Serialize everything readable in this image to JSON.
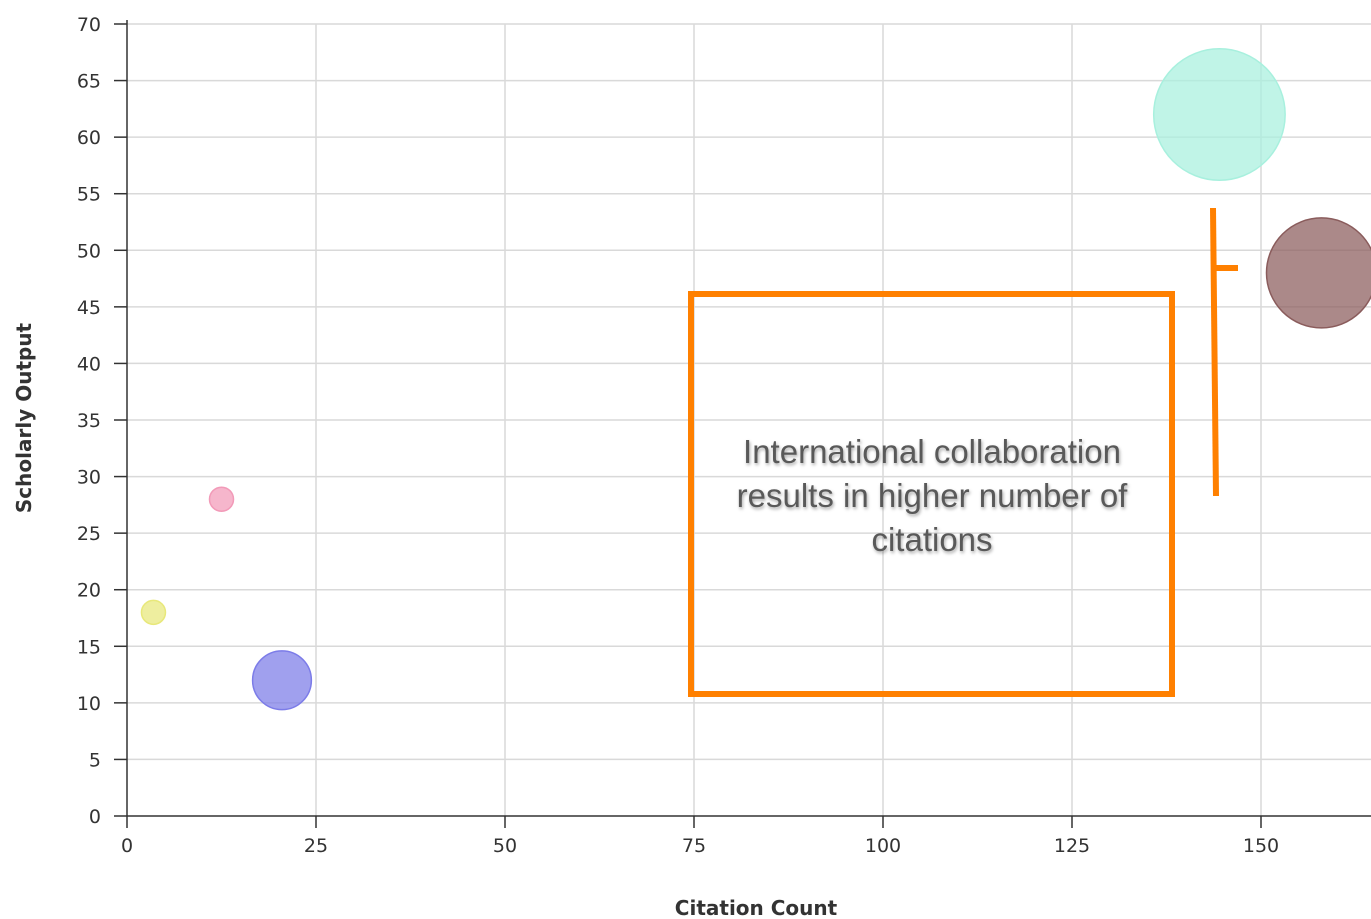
{
  "chart_data": {
    "type": "scatter",
    "variant": "bubble",
    "title": "",
    "xlabel": "Citation Count",
    "ylabel": "Scholarly Output",
    "xlim": [
      0,
      165
    ],
    "ylim": [
      0,
      70
    ],
    "xticks": [
      0,
      25,
      50,
      75,
      100,
      125,
      150
    ],
    "yticks": [
      0,
      5,
      10,
      15,
      20,
      25,
      30,
      35,
      40,
      45,
      50,
      55,
      60,
      65,
      70
    ],
    "grid": true,
    "points": [
      {
        "x": 3.5,
        "y": 18,
        "size": 1,
        "color": "#e8e87a"
      },
      {
        "x": 12.5,
        "y": 28,
        "size": 1,
        "color": "#f29ab8"
      },
      {
        "x": 20.5,
        "y": 12,
        "size": 6,
        "color": "#7c7ce8"
      },
      {
        "x": 144.5,
        "y": 62,
        "size": 30,
        "color": "#a8f0de"
      },
      {
        "x": 158,
        "y": 48,
        "size": 21,
        "color": "#8a5c5c"
      }
    ],
    "annotation": {
      "text": "International collaboration results in higher number of citations",
      "color": "#ff8000"
    }
  }
}
